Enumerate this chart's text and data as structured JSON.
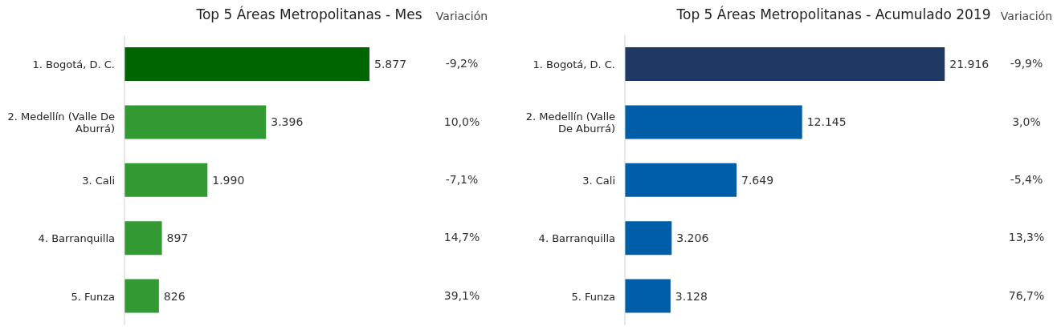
{
  "chart_data": [
    {
      "type": "bar",
      "orientation": "horizontal",
      "title": "Top 5 Áreas Metropolitanas - Mes",
      "categories": [
        "1. Bogotá, D. C.",
        "2. Medellín (Valle De Aburrá)",
        "3. Cali",
        "4. Barranquilla",
        "5. Funza"
      ],
      "values": [
        5877,
        3396,
        1990,
        897,
        826
      ],
      "value_labels": [
        "5.877",
        "3.396",
        "1.990",
        "897",
        "826"
      ],
      "colors": [
        "#006400",
        "#339933",
        "#339933",
        "#339933",
        "#339933"
      ],
      "annotations": [
        "Variación",
        "-9,2%",
        "10,0%",
        "-7,1%",
        "14,7%",
        "39,1%"
      ]
    },
    {
      "type": "bar",
      "orientation": "horizontal",
      "title": "Top 5 Áreas Metropolitanas - Acumulado 2019",
      "categories": [
        "1. Bogotá, D. C.",
        "2. Medellín (Valle De Aburrá)",
        "3. Cali",
        "4. Barranquilla",
        "5. Funza"
      ],
      "values": [
        21916,
        12145,
        7649,
        3206,
        3128
      ],
      "value_labels": [
        "21.916",
        "12.145",
        "7.649",
        "3.206",
        "3.128"
      ],
      "colors": [
        "#1f3864",
        "#005ea8",
        "#005ea8",
        "#005ea8",
        "#005ea8"
      ],
      "annotations": [
        "Variación",
        "-9,9%",
        "3,0%",
        "-5,4%",
        "13,3%",
        "76,7%"
      ]
    }
  ]
}
